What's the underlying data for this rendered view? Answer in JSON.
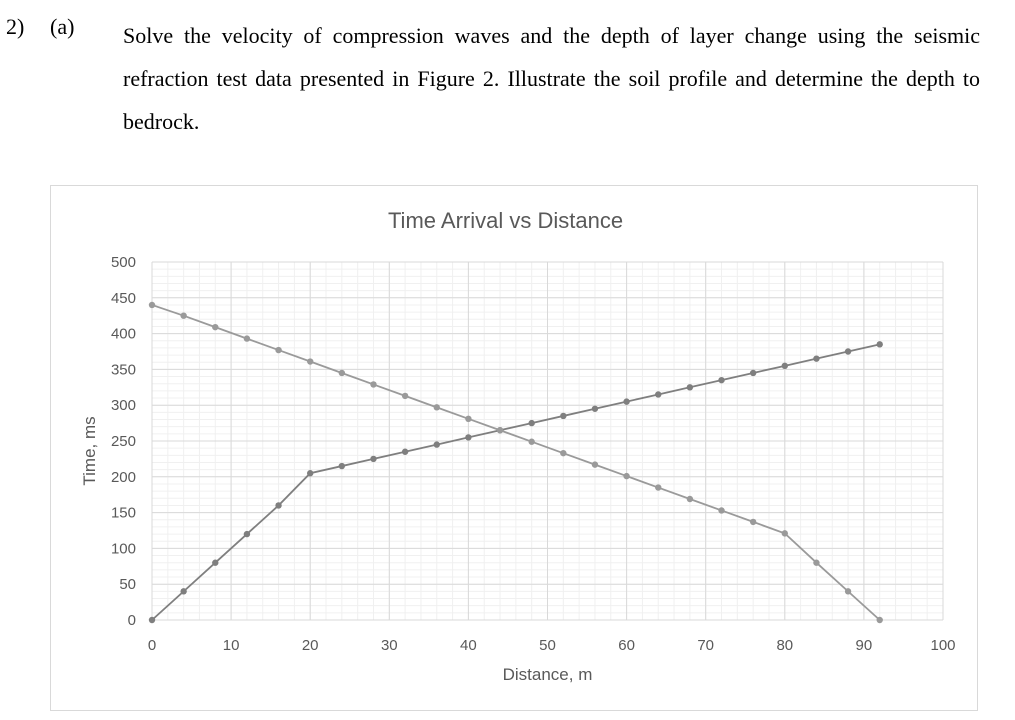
{
  "question": {
    "number": "2)",
    "part": "(a)",
    "text": "Solve the velocity of compression waves and the depth of layer change using the seismic refraction test data presented in Figure 2. Illustrate the soil profile and determine the depth to bedrock."
  },
  "chart_data": {
    "type": "line",
    "title": "Time Arrival vs Distance",
    "xlabel": "Distance, m",
    "ylabel": "Time, ms",
    "xlim": [
      0,
      100
    ],
    "ylim": [
      0,
      500
    ],
    "xticks": [
      0,
      10,
      20,
      30,
      40,
      50,
      60,
      70,
      80,
      90,
      100
    ],
    "yticks": [
      0,
      50,
      100,
      150,
      200,
      250,
      300,
      350,
      400,
      450,
      500
    ],
    "grid": true,
    "legend": "none",
    "series": [
      {
        "color": "#7f7f7f",
        "x": [
          0,
          4,
          8,
          12,
          16,
          20,
          24,
          28,
          32,
          36,
          40,
          44,
          48,
          52,
          56,
          60,
          64,
          68,
          72,
          76,
          80,
          84,
          88,
          92
        ],
        "y": [
          0,
          40,
          80,
          120,
          160,
          205,
          215,
          225,
          235,
          245,
          255,
          265,
          275,
          285,
          295,
          305,
          315,
          325,
          335,
          345,
          355,
          365,
          375,
          385
        ]
      },
      {
        "color": "#9a9a9a",
        "x": [
          0,
          4,
          8,
          12,
          16,
          20,
          24,
          28,
          32,
          36,
          40,
          44,
          48,
          52,
          56,
          60,
          64,
          68,
          72,
          76,
          80,
          84,
          88,
          92
        ],
        "y": [
          440,
          425,
          409,
          393,
          377,
          361,
          345,
          329,
          313,
          297,
          281,
          265,
          249,
          233,
          217,
          201,
          185,
          169,
          153,
          137,
          121,
          80,
          40,
          0
        ]
      }
    ]
  }
}
